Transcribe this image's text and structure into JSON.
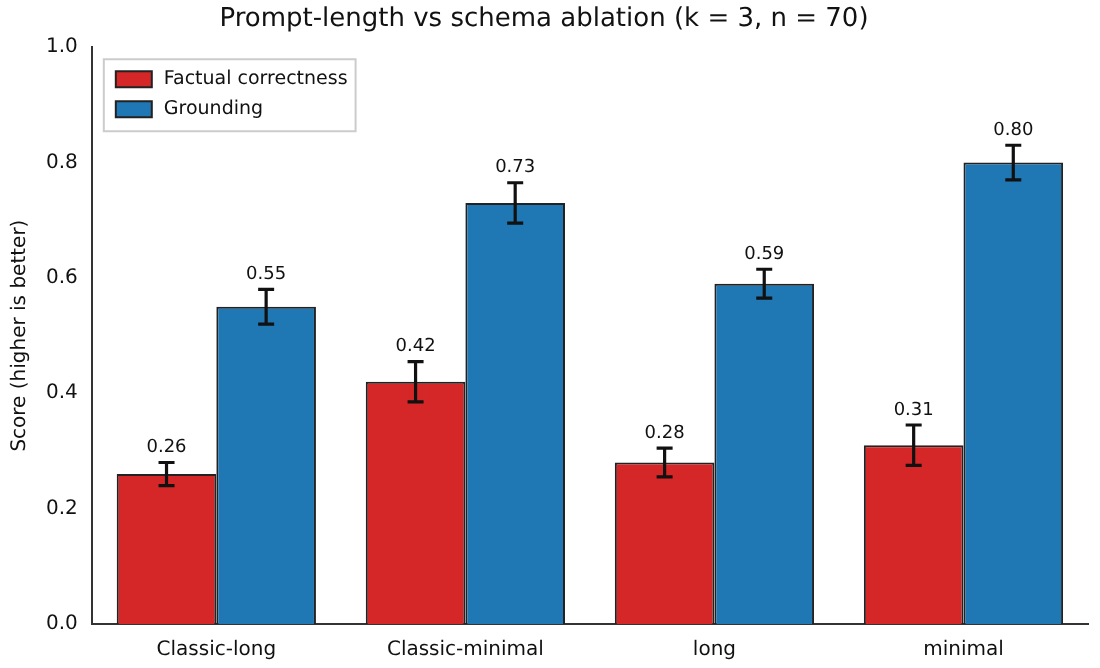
{
  "chart_data": {
    "type": "bar",
    "title": "Prompt-length vs schema ablation (k = 3, n = 70)",
    "ylabel": "Score (higher is better)",
    "categories": [
      "Classic-long",
      "Classic-minimal",
      "long",
      "minimal"
    ],
    "series": [
      {
        "name": "Factual correctness",
        "color": "#d62728",
        "values": [
          0.26,
          0.42,
          0.28,
          0.31
        ],
        "value_labels": [
          "0.26",
          "0.42",
          "0.28",
          "0.31"
        ],
        "errors": [
          0.02,
          0.035,
          0.025,
          0.035
        ]
      },
      {
        "name": "Grounding",
        "color": "#1f77b4",
        "values": [
          0.55,
          0.73,
          0.59,
          0.8
        ],
        "value_labels": [
          "0.55",
          "0.73",
          "0.59",
          "0.80"
        ],
        "errors": [
          0.03,
          0.035,
          0.025,
          0.03
        ]
      }
    ],
    "ylim": [
      0,
      1
    ],
    "yticks": [
      {
        "value": 0,
        "label": "0.0"
      },
      {
        "value": 0.2,
        "label": "0.2"
      },
      {
        "value": 0.4,
        "label": "0.4"
      },
      {
        "value": 0.6,
        "label": "0.6"
      },
      {
        "value": 0.8,
        "label": "0.8"
      },
      {
        "value": 1,
        "label": "1.0"
      }
    ],
    "grid": false,
    "legend": "top left"
  }
}
